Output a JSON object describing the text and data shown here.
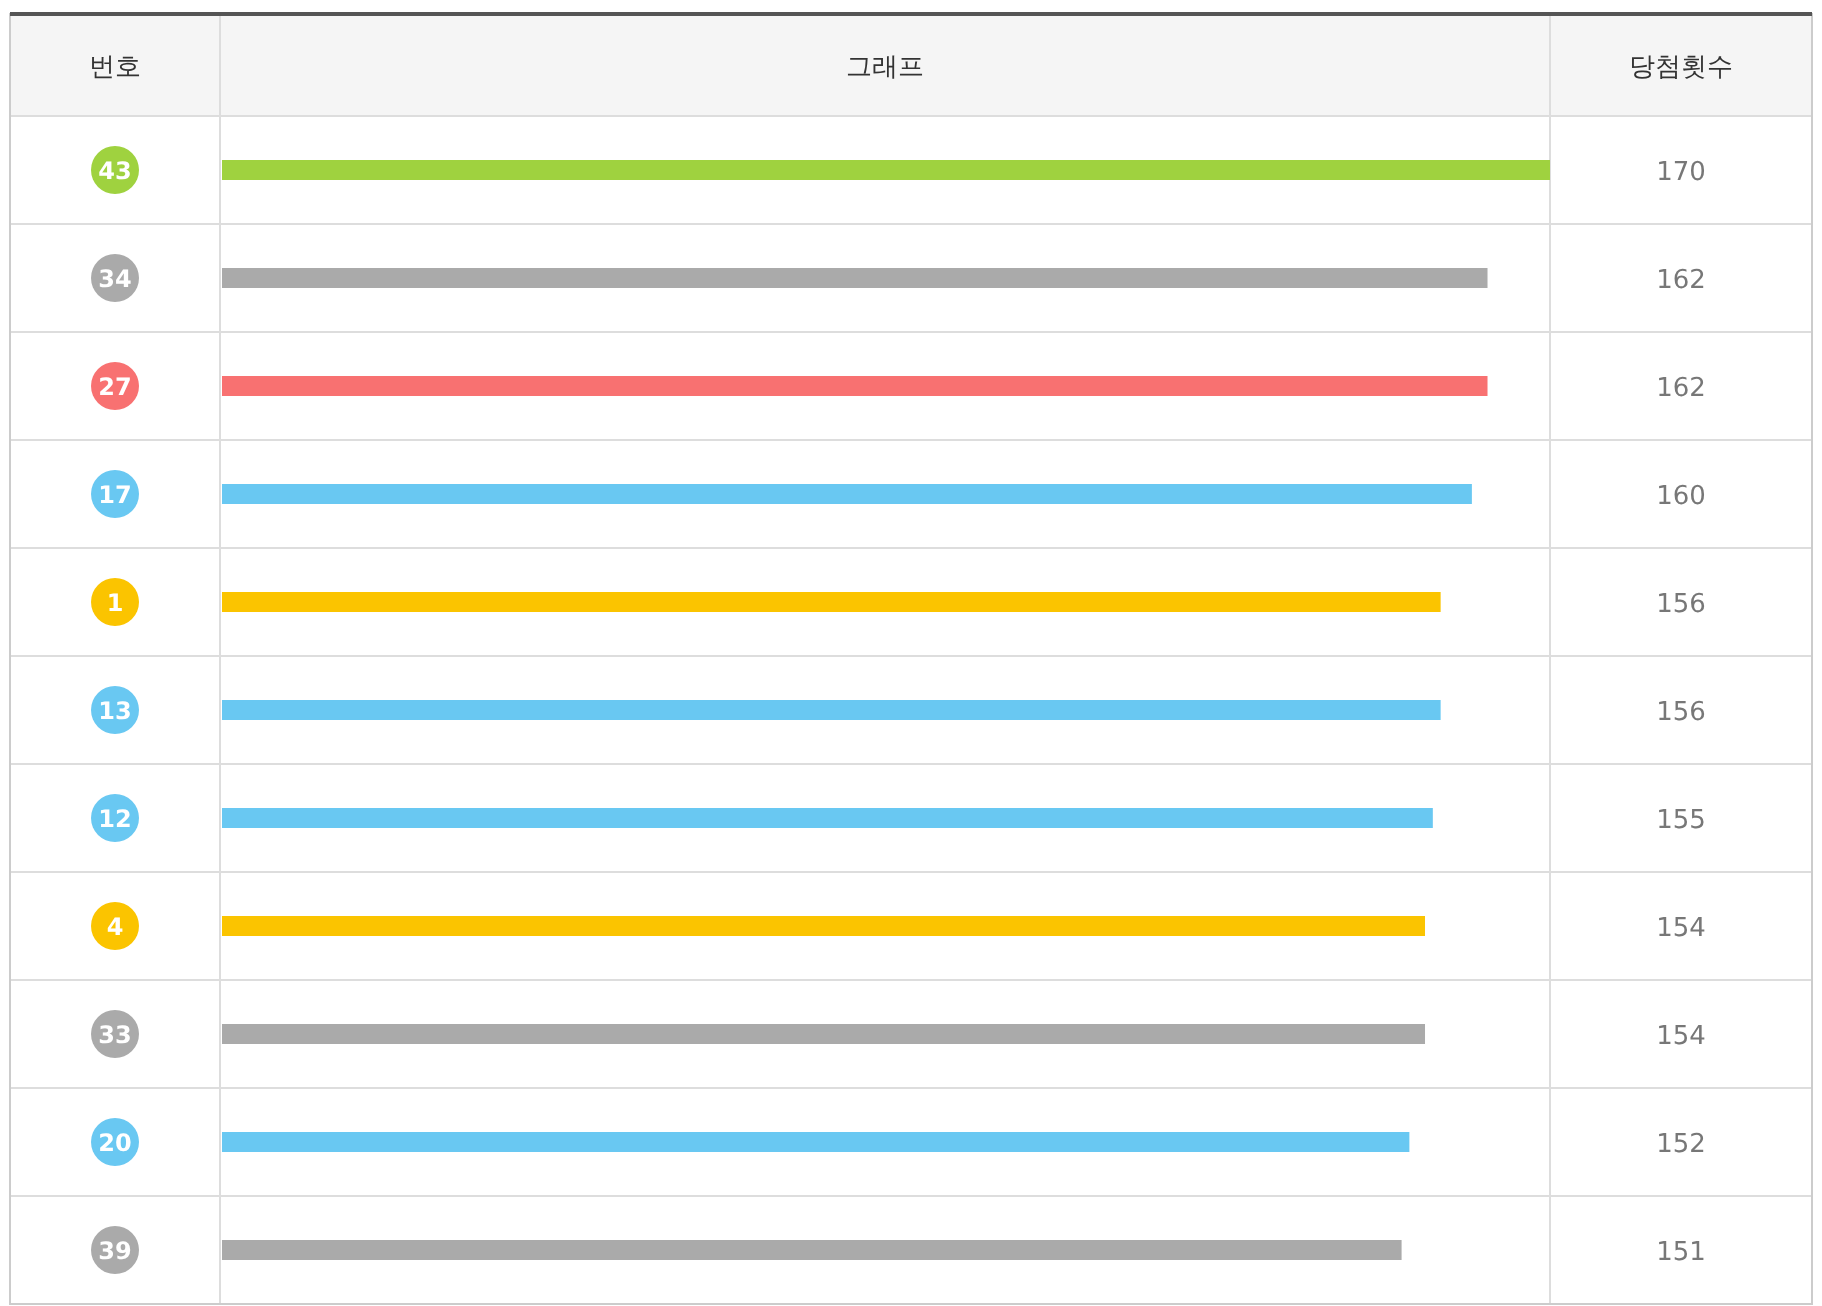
{
  "chart_data": {
    "type": "bar",
    "orientation": "horizontal",
    "title": "그래프",
    "ylabel": "번호",
    "xlabel": "당첨횟수",
    "categories": [
      "43",
      "34",
      "27",
      "17",
      "1",
      "13",
      "12",
      "4",
      "33",
      "20",
      "39"
    ],
    "values": [
      170,
      162,
      162,
      160,
      156,
      156,
      155,
      154,
      154,
      152,
      151
    ],
    "colors": [
      "#9fd23f",
      "#aaaaaa",
      "#f87171",
      "#69c8f2",
      "#fbc400",
      "#69c8f2",
      "#69c8f2",
      "#fbc400",
      "#aaaaaa",
      "#69c8f2",
      "#aaaaaa"
    ],
    "xlim": [
      0,
      170
    ],
    "data_labels": true
  }
}
